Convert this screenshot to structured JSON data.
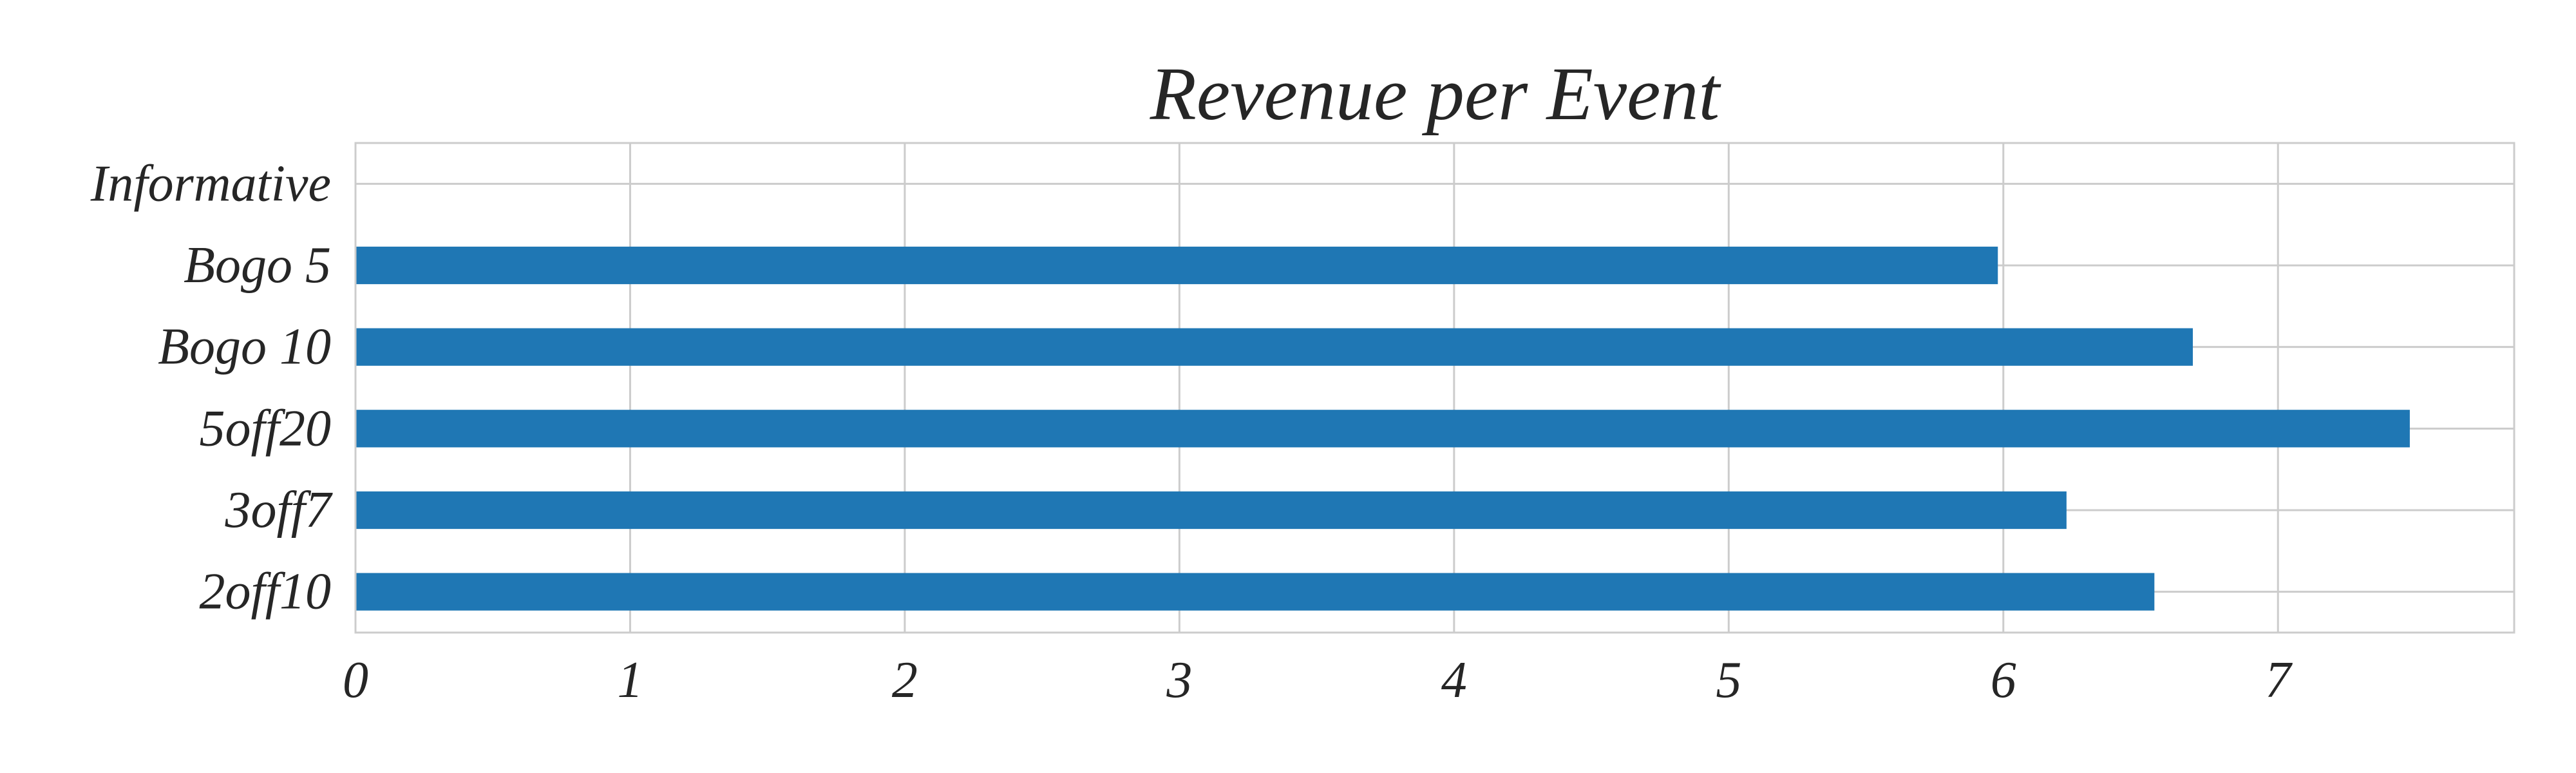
{
  "chart_data": {
    "type": "bar",
    "orientation": "horizontal",
    "title": "Revenue per Event",
    "xlabel": "",
    "ylabel": "",
    "categories": [
      "Informative",
      "Bogo 5",
      "Bogo 10",
      "5off20",
      "3off7",
      "2off10"
    ],
    "values": [
      0,
      5.98,
      6.69,
      7.48,
      6.23,
      6.55
    ],
    "xlim": [
      0,
      7.86
    ],
    "xticks": [
      0,
      1,
      2,
      3,
      4,
      5,
      6,
      7
    ],
    "grid": true,
    "legend": "none",
    "colors": {
      "bar": "#1f77b4",
      "grid": "#cccccc",
      "text": "#262626",
      "background": "#ffffff"
    }
  }
}
